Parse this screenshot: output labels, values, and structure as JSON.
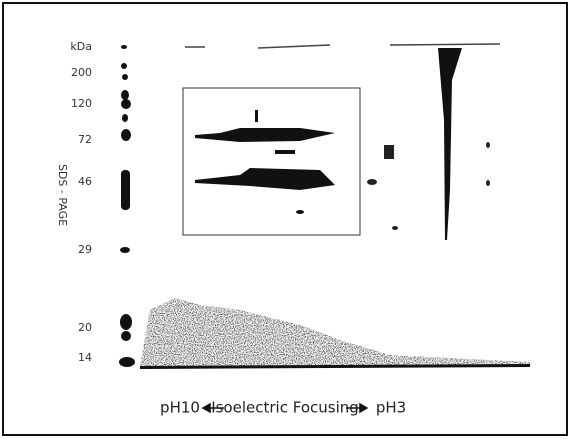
{
  "axis_title": "kDa",
  "markers": [
    200,
    120,
    72,
    46,
    29,
    20,
    14
  ],
  "vertical_label": "SDS - PAGE",
  "bottom": {
    "left": "pH10",
    "center": "Isoelectric Focusing",
    "right": "pH3"
  }
}
